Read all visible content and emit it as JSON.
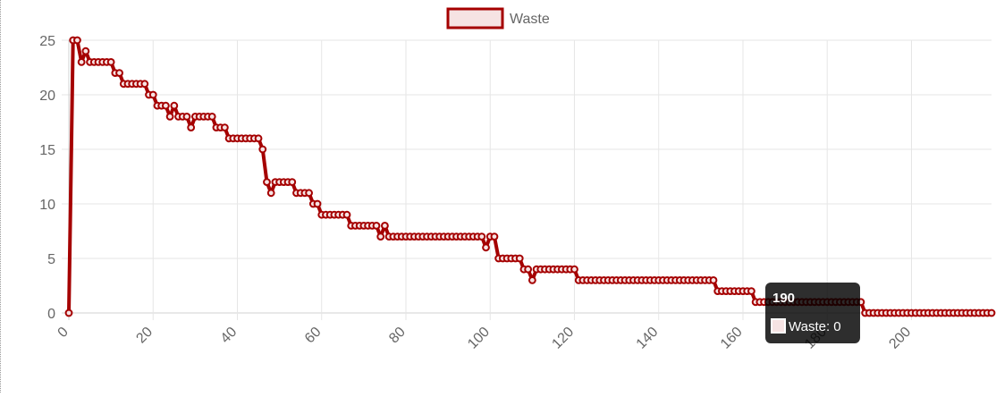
{
  "chart_data": {
    "type": "line",
    "title": "",
    "xlabel": "",
    "ylabel": "",
    "xlim": [
      0,
      219
    ],
    "ylim": [
      0,
      25
    ],
    "x_ticks": [
      0,
      20,
      40,
      60,
      80,
      100,
      120,
      140,
      160,
      180,
      200
    ],
    "y_ticks": [
      0,
      5,
      10,
      15,
      20,
      25
    ],
    "grid": true,
    "legend_position": "top-center",
    "series": [
      {
        "name": "Waste",
        "border_color": "#a50000",
        "fill_color": "#f6e3e3",
        "runs": [
          [
            0,
            0
          ],
          [
            1,
            25
          ],
          [
            3,
            23
          ],
          [
            4,
            24
          ],
          [
            5,
            23
          ],
          [
            11,
            22
          ],
          [
            13,
            21
          ],
          [
            19,
            20
          ],
          [
            21,
            19
          ],
          [
            24,
            18
          ],
          [
            25,
            19
          ],
          [
            26,
            18
          ],
          [
            29,
            17
          ],
          [
            30,
            18
          ],
          [
            35,
            17
          ],
          [
            38,
            16
          ],
          [
            46,
            15
          ],
          [
            47,
            12
          ],
          [
            48,
            11
          ],
          [
            49,
            12
          ],
          [
            54,
            11
          ],
          [
            58,
            10
          ],
          [
            60,
            9
          ],
          [
            67,
            8
          ],
          [
            74,
            7
          ],
          [
            75,
            8
          ],
          [
            76,
            7
          ],
          [
            99,
            6
          ],
          [
            100,
            7
          ],
          [
            102,
            5
          ],
          [
            108,
            4
          ],
          [
            110,
            3
          ],
          [
            111,
            4
          ],
          [
            121,
            3
          ],
          [
            154,
            2
          ],
          [
            163,
            1
          ],
          [
            189,
            0
          ],
          [
            219,
            0
          ]
        ]
      }
    ],
    "tooltip": {
      "title": "190",
      "label": "Waste: 0",
      "x": 190
    }
  }
}
